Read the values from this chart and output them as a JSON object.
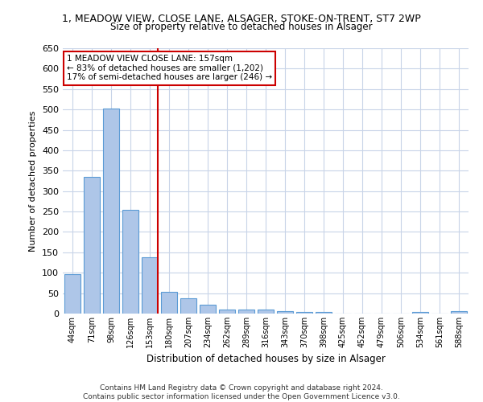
{
  "title_line1": "1, MEADOW VIEW, CLOSE LANE, ALSAGER, STOKE-ON-TRENT, ST7 2WP",
  "title_line2": "Size of property relative to detached houses in Alsager",
  "xlabel": "Distribution of detached houses by size in Alsager",
  "ylabel": "Number of detached properties",
  "categories": [
    "44sqm",
    "71sqm",
    "98sqm",
    "126sqm",
    "153sqm",
    "180sqm",
    "207sqm",
    "234sqm",
    "262sqm",
    "289sqm",
    "316sqm",
    "343sqm",
    "370sqm",
    "398sqm",
    "425sqm",
    "452sqm",
    "479sqm",
    "506sqm",
    "534sqm",
    "561sqm",
    "588sqm"
  ],
  "values": [
    97,
    335,
    503,
    255,
    138,
    54,
    37,
    22,
    10,
    10,
    10,
    5,
    3,
    3,
    0,
    0,
    0,
    0,
    3,
    0,
    6
  ],
  "bar_color": "#aec6e8",
  "bar_edge_color": "#5b9bd5",
  "vline_index": 4,
  "annotation_text_line1": "1 MEADOW VIEW CLOSE LANE: 157sqm",
  "annotation_text_line2": "← 83% of detached houses are smaller (1,202)",
  "annotation_text_line3": "17% of semi-detached houses are larger (246) →",
  "annotation_box_color": "#ffffff",
  "annotation_box_edge_color": "#cc0000",
  "vline_color": "#cc0000",
  "grid_color": "#c8d4e8",
  "background_color": "#ffffff",
  "ylim": [
    0,
    650
  ],
  "yticks": [
    0,
    50,
    100,
    150,
    200,
    250,
    300,
    350,
    400,
    450,
    500,
    550,
    600,
    650
  ],
  "footnote_line1": "Contains HM Land Registry data © Crown copyright and database right 2024.",
  "footnote_line2": "Contains public sector information licensed under the Open Government Licence v3.0."
}
